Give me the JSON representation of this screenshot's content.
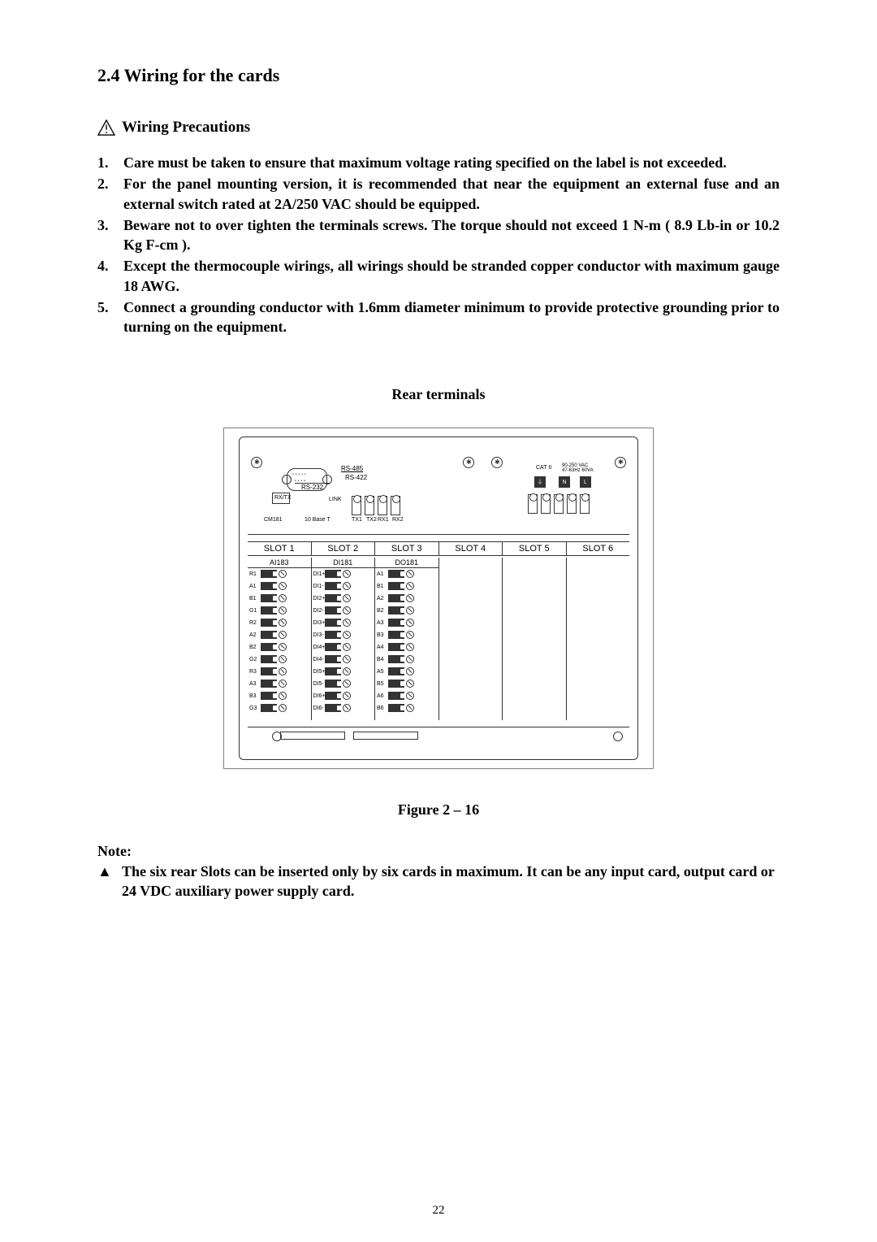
{
  "section": {
    "heading": "2.4  Wiring for the cards",
    "warning_label": "Wiring Precautions"
  },
  "precautions": [
    "Care must be taken to ensure that maximum voltage rating specified on the label is not exceeded.",
    "For the panel mounting version, it is recommended that near the equipment an external fuse and an external switch rated at 2A/250 VAC should be equipped.",
    "Beware not to over tighten the terminals screws.  The torque should not exceed 1 N-m ( 8.9 Lb-in or 10.2 Kg F-cm ).",
    "Except the thermocouple wirings, all wirings should be stranded copper conductor with maximum gauge 18 AWG.",
    "Connect a grounding conductor with 1.6mm diameter minimum to provide protective grounding prior to turning on the equipment."
  ],
  "diagram": {
    "title": "Rear terminals",
    "slots": [
      "SLOT 1",
      "SLOT 2",
      "SLOT 3",
      "SLOT 4",
      "SLOT 5",
      "SLOT 6"
    ],
    "cards": [
      {
        "name": "AI183",
        "terminals": [
          "R1",
          "A1",
          "B1",
          "G1",
          "R2",
          "A2",
          "B2",
          "G2",
          "R3",
          "A3",
          "B3",
          "G3"
        ]
      },
      {
        "name": "DI181",
        "terminals": [
          "DI1+",
          "DI1-",
          "DI2+",
          "DI2-",
          "DI3+",
          "DI3-",
          "DI4+",
          "DI4-",
          "DI5+",
          "DI5-",
          "DI6+",
          "DI6-"
        ]
      },
      {
        "name": "DO181",
        "terminals": [
          "A1",
          "B1",
          "A2",
          "B2",
          "A3",
          "B3",
          "A4",
          "B4",
          "A5",
          "B5",
          "A6",
          "B6"
        ]
      }
    ],
    "top_labels": {
      "cm181": "CM181",
      "rs232": "RS-232",
      "rs485": "RS-485",
      "rs422": "RS-422",
      "link": "LINK",
      "rxtx": "RX/TX",
      "base_t": "10 Base T",
      "tx1": "TX1",
      "tx2": "TX2",
      "rx1": "RX1",
      "rx2": "RX2",
      "cat_ii": "CAT II",
      "voltage": "90-250 VAC\n47-63Hz 60VA",
      "n": "N",
      "l": "L"
    }
  },
  "figure_caption": "Figure 2 – 16",
  "note": {
    "heading": "Note:",
    "marker": "▲",
    "text": "The six rear Slots can be inserted only by six cards in maximum.  It can be any input card, output card or 24 VDC auxiliary power supply card."
  },
  "page_number": "22"
}
